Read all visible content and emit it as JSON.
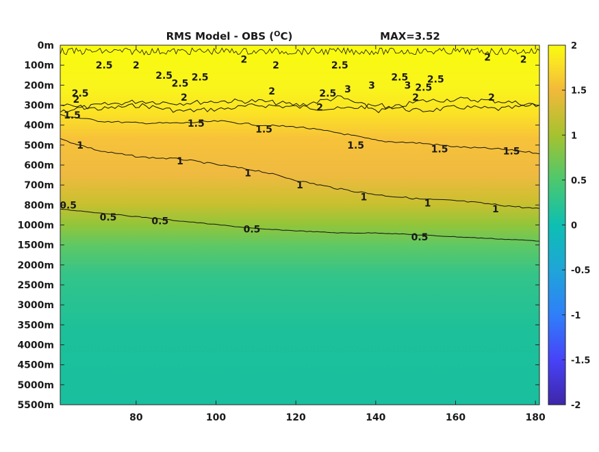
{
  "chart_data": {
    "type": "heatmap",
    "title": "RMS Model - OBS (°C)",
    "title_main": "RMS Model - OBS (",
    "title_sup": "O",
    "title_unit": "C)",
    "max_annotation": "MAX=3.52",
    "xlabel": "",
    "ylabel": "",
    "xlim": [
      61,
      181
    ],
    "x_ticks": [
      80,
      100,
      120,
      140,
      160,
      180
    ],
    "y_tick_labels": [
      "0m",
      "100m",
      "200m",
      "300m",
      "400m",
      "500m",
      "600m",
      "700m",
      "800m",
      "1000m",
      "1500m",
      "2000m",
      "2500m",
      "3000m",
      "3500m",
      "4000m",
      "4500m",
      "5000m",
      "5500m"
    ],
    "colorbar": {
      "range": [
        -2,
        2
      ],
      "ticks": [
        "2",
        "1.5",
        "1",
        "0.5",
        "0",
        "-0.5",
        "-1",
        "-1.5",
        "-2"
      ],
      "colormap": [
        "#3e26a8",
        "#4743f8",
        "#2f7ff9",
        "#1fa5d8",
        "#0dbfb2",
        "#4cc86e",
        "#a6c22f",
        "#f2b93a",
        "#fbe224",
        "#f9fb0e"
      ]
    },
    "contours": [
      {
        "level": 2.5,
        "y_level": [
          3.0,
          3.2,
          3.0,
          3.3,
          3.2,
          3.0,
          3.1,
          3.2,
          3.0,
          3.3,
          3.1,
          3.2,
          3.0
        ]
      },
      {
        "level": 2,
        "y_level": [
          3.3,
          3.0,
          2.8,
          2.9,
          2.8,
          2.8,
          3.0,
          2.6,
          3.3,
          2.8,
          2.7,
          2.8,
          3.0
        ]
      },
      {
        "level": 1.5,
        "y_level": [
          3.5,
          3.8,
          3.9,
          3.9,
          3.8,
          4.0,
          4.1,
          4.4,
          4.8,
          4.9,
          5.1,
          5.2,
          5.4
        ]
      },
      {
        "level": 1,
        "y_level": [
          4.7,
          5.3,
          5.6,
          5.7,
          6.0,
          6.3,
          6.8,
          7.2,
          7.5,
          7.7,
          7.8,
          8.0,
          8.2
        ]
      },
      {
        "level": 0.5,
        "y_level": [
          8.2,
          8.4,
          8.6,
          8.8,
          9.0,
          9.2,
          9.3,
          9.4,
          9.4,
          9.5,
          9.6,
          9.7,
          9.8
        ]
      }
    ],
    "contour_x": [
      61,
      71,
      81,
      91,
      101,
      111,
      121,
      131,
      141,
      151,
      161,
      171,
      181
    ],
    "contour_labels": [
      {
        "text": "2.5",
        "x": 72,
        "y": 1.0
      },
      {
        "text": "2",
        "x": 80,
        "y": 1.0
      },
      {
        "text": "2.5",
        "x": 87,
        "y": 1.5
      },
      {
        "text": "2.5",
        "x": 91,
        "y": 1.9
      },
      {
        "text": "2.5",
        "x": 96,
        "y": 1.6
      },
      {
        "text": "2",
        "x": 107,
        "y": 0.7
      },
      {
        "text": "2",
        "x": 115,
        "y": 1.0
      },
      {
        "text": "2.5",
        "x": 131,
        "y": 1.0
      },
      {
        "text": "2.5",
        "x": 66,
        "y": 2.4
      },
      {
        "text": "2",
        "x": 65,
        "y": 2.7
      },
      {
        "text": "2",
        "x": 92,
        "y": 2.6
      },
      {
        "text": "2",
        "x": 114,
        "y": 2.3
      },
      {
        "text": "2.5",
        "x": 128,
        "y": 2.4
      },
      {
        "text": "3",
        "x": 133,
        "y": 2.2
      },
      {
        "text": "3",
        "x": 139,
        "y": 2.0
      },
      {
        "text": "3",
        "x": 148,
        "y": 2.0
      },
      {
        "text": "2.5",
        "x": 146,
        "y": 1.6
      },
      {
        "text": "2.5",
        "x": 155,
        "y": 1.7
      },
      {
        "text": "2",
        "x": 150,
        "y": 2.6
      },
      {
        "text": "2",
        "x": 169,
        "y": 2.6
      },
      {
        "text": "2",
        "x": 126,
        "y": 3.1
      },
      {
        "text": "2.5",
        "x": 152,
        "y": 2.1
      },
      {
        "text": "2",
        "x": 168,
        "y": 0.6
      },
      {
        "text": "2",
        "x": 177,
        "y": 0.7
      },
      {
        "text": "1.5",
        "x": 64,
        "y": 3.5
      },
      {
        "text": "1.5",
        "x": 95,
        "y": 3.9
      },
      {
        "text": "1.5",
        "x": 112,
        "y": 4.2
      },
      {
        "text": "1.5",
        "x": 135,
        "y": 5.0
      },
      {
        "text": "1.5",
        "x": 156,
        "y": 5.2
      },
      {
        "text": "1.5",
        "x": 174,
        "y": 5.3
      },
      {
        "text": "1",
        "x": 66,
        "y": 5.0
      },
      {
        "text": "1",
        "x": 91,
        "y": 5.8
      },
      {
        "text": "1",
        "x": 108,
        "y": 6.4
      },
      {
        "text": "1",
        "x": 121,
        "y": 7.0
      },
      {
        "text": "1",
        "x": 137,
        "y": 7.6
      },
      {
        "text": "1",
        "x": 153,
        "y": 7.9
      },
      {
        "text": "1",
        "x": 170,
        "y": 8.2
      },
      {
        "text": "0.5",
        "x": 63,
        "y": 8.0
      },
      {
        "text": "0.5",
        "x": 73,
        "y": 8.6
      },
      {
        "text": "0.5",
        "x": 86,
        "y": 8.8
      },
      {
        "text": "0.5",
        "x": 109,
        "y": 9.2
      },
      {
        "text": "0.5",
        "x": 151,
        "y": 9.6
      }
    ]
  }
}
